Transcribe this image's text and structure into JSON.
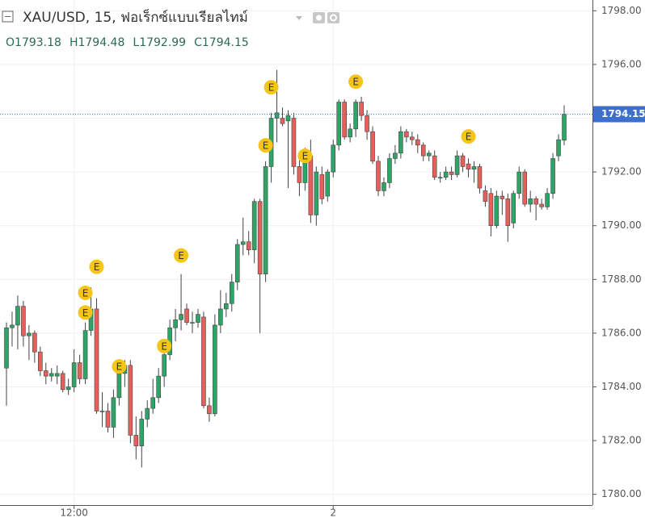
{
  "chart_data": {
    "type": "candlestick",
    "title": "XAU/USD, 15, ฟอเร็กซ์แบบเรียลไทม์",
    "ohlc": [
      {
        "label": "O",
        "value": 1793.18
      },
      {
        "label": "H",
        "value": 1794.48
      },
      {
        "label": "L",
        "value": 1792.99
      },
      {
        "label": "C",
        "value": 1794.15
      }
    ],
    "up_color": "#2ea466",
    "down_color": "#e5605a",
    "wick_color": "#444444",
    "grid": true,
    "ylim": [
      1779.6,
      1798.4
    ],
    "yticks": [
      {
        "value": 1780,
        "label": "1780.00"
      },
      {
        "value": 1782,
        "label": "1782.00"
      },
      {
        "value": 1784,
        "label": "1784.00"
      },
      {
        "value": 1786,
        "label": "1786.00"
      },
      {
        "value": 1788,
        "label": "1788.00"
      },
      {
        "value": 1790,
        "label": "1790.00"
      },
      {
        "value": 1792,
        "label": "1792.00"
      },
      {
        "value": 1794,
        "label": "1794.00"
      },
      {
        "value": 1796,
        "label": "1796.00"
      },
      {
        "value": 1798,
        "label": "1798.00"
      }
    ],
    "xlabels": [
      {
        "index": 12,
        "label": "12:00"
      },
      {
        "index": 58,
        "label": "2"
      }
    ],
    "last_price": 1794.15,
    "last_price_color": "#3d6fcc",
    "candles": [
      [
        1784.7,
        1786.4,
        1783.3,
        1786.2
      ],
      [
        1786.2,
        1786.8,
        1785.5,
        1786.3
      ],
      [
        1786.3,
        1787.4,
        1785.4,
        1787.0
      ],
      [
        1787.0,
        1787.2,
        1785.5,
        1785.9
      ],
      [
        1785.9,
        1786.3,
        1785.0,
        1786.0
      ],
      [
        1786.0,
        1786.1,
        1784.9,
        1785.3
      ],
      [
        1785.3,
        1785.5,
        1784.4,
        1784.6
      ],
      [
        1784.6,
        1784.9,
        1784.1,
        1784.4
      ],
      [
        1784.4,
        1784.7,
        1784.2,
        1784.5
      ],
      [
        1784.4,
        1784.8,
        1784.1,
        1784.5
      ],
      [
        1784.5,
        1784.6,
        1783.8,
        1783.9
      ],
      [
        1783.9,
        1784.3,
        1783.7,
        1784.0
      ],
      [
        1784.0,
        1785.4,
        1783.8,
        1784.9
      ],
      [
        1784.9,
        1785.2,
        1784.1,
        1784.3
      ],
      [
        1784.3,
        1786.4,
        1784.1,
        1786.1
      ],
      [
        1786.1,
        1787.7,
        1785.9,
        1786.9
      ],
      [
        1786.9,
        1787.3,
        1783.0,
        1783.1
      ],
      [
        1783.1,
        1783.8,
        1782.5,
        1783.1
      ],
      [
        1783.1,
        1783.4,
        1782.3,
        1782.5
      ],
      [
        1782.5,
        1783.9,
        1782.1,
        1783.6
      ],
      [
        1783.6,
        1784.8,
        1783.3,
        1784.5
      ],
      [
        1784.5,
        1785.0,
        1784.0,
        1784.8
      ],
      [
        1784.8,
        1785.0,
        1781.9,
        1782.2
      ],
      [
        1782.2,
        1782.9,
        1781.3,
        1781.8
      ],
      [
        1781.8,
        1783.1,
        1781.0,
        1782.8
      ],
      [
        1782.8,
        1783.5,
        1782.5,
        1783.2
      ],
      [
        1783.2,
        1784.3,
        1783.0,
        1783.6
      ],
      [
        1783.6,
        1784.7,
        1783.4,
        1784.4
      ],
      [
        1784.4,
        1785.4,
        1784.0,
        1785.2
      ],
      [
        1785.2,
        1786.5,
        1785.0,
        1786.2
      ],
      [
        1786.2,
        1786.9,
        1785.7,
        1786.5
      ],
      [
        1786.5,
        1788.2,
        1786.1,
        1786.7
      ],
      [
        1786.9,
        1787.1,
        1786.3,
        1786.4
      ],
      [
        1786.4,
        1786.8,
        1786.0,
        1786.4
      ],
      [
        1786.4,
        1786.9,
        1786.2,
        1786.7
      ],
      [
        1786.6,
        1786.8,
        1783.2,
        1783.3
      ],
      [
        1783.3,
        1783.6,
        1782.7,
        1783.0
      ],
      [
        1783.0,
        1786.7,
        1782.9,
        1786.3
      ],
      [
        1786.3,
        1787.6,
        1786.0,
        1786.9
      ],
      [
        1786.9,
        1787.5,
        1786.6,
        1787.1
      ],
      [
        1787.1,
        1788.2,
        1786.8,
        1787.9
      ],
      [
        1787.9,
        1789.5,
        1787.6,
        1789.3
      ],
      [
        1789.3,
        1790.3,
        1788.9,
        1789.4
      ],
      [
        1789.4,
        1789.8,
        1788.9,
        1789.1
      ],
      [
        1789.1,
        1791.0,
        1788.6,
        1790.9
      ],
      [
        1790.9,
        1791.0,
        1786.0,
        1788.2
      ],
      [
        1788.2,
        1792.4,
        1787.9,
        1792.2
      ],
      [
        1792.2,
        1794.2,
        1791.6,
        1794.0
      ],
      [
        1794.0,
        1795.8,
        1793.1,
        1794.2
      ],
      [
        1794.0,
        1794.4,
        1793.7,
        1793.8
      ],
      [
        1793.9,
        1794.3,
        1791.4,
        1794.1
      ],
      [
        1794.0,
        1794.2,
        1791.9,
        1792.2
      ],
      [
        1792.2,
        1792.5,
        1791.1,
        1791.6
      ],
      [
        1791.6,
        1792.9,
        1791.3,
        1792.6
      ],
      [
        1792.6,
        1793.2,
        1790.1,
        1790.4
      ],
      [
        1790.4,
        1792.2,
        1790.0,
        1792.0
      ],
      [
        1791.9,
        1792.2,
        1790.8,
        1791.0
      ],
      [
        1791.1,
        1792.1,
        1790.9,
        1792.0
      ],
      [
        1792.0,
        1793.2,
        1791.8,
        1793.0
      ],
      [
        1793.0,
        1794.7,
        1792.8,
        1794.6
      ],
      [
        1794.6,
        1794.7,
        1793.2,
        1793.3
      ],
      [
        1793.3,
        1793.8,
        1793.1,
        1793.6
      ],
      [
        1793.6,
        1794.7,
        1793.3,
        1794.6
      ],
      [
        1794.6,
        1794.8,
        1793.9,
        1794.1
      ],
      [
        1794.1,
        1794.3,
        1793.2,
        1793.5
      ],
      [
        1793.5,
        1793.7,
        1792.3,
        1792.4
      ],
      [
        1792.4,
        1792.6,
        1791.1,
        1791.3
      ],
      [
        1791.3,
        1791.8,
        1791.1,
        1791.6
      ],
      [
        1791.6,
        1792.7,
        1791.4,
        1792.5
      ],
      [
        1792.5,
        1793.0,
        1792.3,
        1792.7
      ],
      [
        1792.7,
        1793.7,
        1792.5,
        1793.5
      ],
      [
        1793.5,
        1793.6,
        1793.1,
        1793.3
      ],
      [
        1793.3,
        1793.5,
        1793.0,
        1793.2
      ],
      [
        1793.2,
        1793.4,
        1792.7,
        1793.0
      ],
      [
        1793.0,
        1793.1,
        1792.4,
        1792.6
      ],
      [
        1792.6,
        1792.8,
        1792.4,
        1792.7
      ],
      [
        1792.6,
        1792.8,
        1791.7,
        1791.8
      ],
      [
        1791.8,
        1792.0,
        1791.6,
        1791.8
      ],
      [
        1791.8,
        1792.2,
        1791.7,
        1792.0
      ],
      [
        1792.0,
        1792.2,
        1791.7,
        1791.9
      ],
      [
        1791.9,
        1792.8,
        1791.8,
        1792.6
      ],
      [
        1792.6,
        1792.7,
        1792.0,
        1792.2
      ],
      [
        1792.3,
        1792.5,
        1791.8,
        1792.1
      ],
      [
        1792.1,
        1792.4,
        1791.6,
        1792.2
      ],
      [
        1792.2,
        1792.3,
        1791.2,
        1791.4
      ],
      [
        1791.3,
        1791.5,
        1790.7,
        1790.9
      ],
      [
        1791.2,
        1791.4,
        1789.6,
        1790.0
      ],
      [
        1790.0,
        1791.3,
        1789.9,
        1791.1
      ],
      [
        1791.1,
        1791.3,
        1790.4,
        1791.0
      ],
      [
        1791.0,
        1791.2,
        1789.4,
        1790.0
      ],
      [
        1790.1,
        1791.3,
        1789.9,
        1791.2
      ],
      [
        1791.2,
        1792.2,
        1791.0,
        1792.0
      ],
      [
        1792.0,
        1792.1,
        1790.7,
        1790.8
      ],
      [
        1790.8,
        1791.3,
        1790.5,
        1791.0
      ],
      [
        1791.0,
        1791.1,
        1790.2,
        1790.8
      ],
      [
        1790.8,
        1791.0,
        1790.6,
        1790.7
      ],
      [
        1790.7,
        1791.4,
        1790.6,
        1791.2
      ],
      [
        1791.2,
        1792.7,
        1791.0,
        1792.5
      ],
      [
        1792.6,
        1793.4,
        1792.4,
        1793.2
      ],
      [
        1793.18,
        1794.48,
        1792.99,
        1794.15
      ]
    ],
    "events": [
      {
        "index": 16,
        "value": 1788.47,
        "label": "E"
      },
      {
        "index": 14,
        "value": 1787.5,
        "label": "E"
      },
      {
        "index": 14,
        "value": 1786.77,
        "label": "E"
      },
      {
        "index": 20,
        "value": 1784.76,
        "label": "E"
      },
      {
        "index": 28,
        "value": 1785.52,
        "label": "E"
      },
      {
        "index": 31,
        "value": 1788.89,
        "label": "E"
      },
      {
        "index": 47,
        "value": 1795.15,
        "label": "E"
      },
      {
        "index": 46,
        "value": 1792.99,
        "label": "E"
      },
      {
        "index": 53,
        "value": 1792.6,
        "label": "E"
      },
      {
        "index": 62,
        "value": 1795.36,
        "label": "E"
      },
      {
        "index": 82,
        "value": 1793.32,
        "label": "E"
      }
    ]
  }
}
